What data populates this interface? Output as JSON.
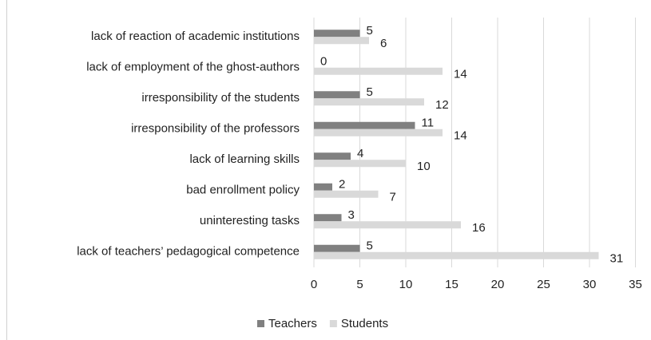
{
  "chart_data": {
    "type": "bar",
    "orientation": "horizontal",
    "categories": [
      "lack of reaction of academic institutions",
      "lack of employment of the ghost-authors",
      "irresponsibility of the students",
      "irresponsibility of the professors",
      "lack of learning skills",
      "bad enrollment policy",
      "uninteresting tasks",
      "lack of teachers’ pedagogical competence"
    ],
    "series": [
      {
        "name": "Teachers",
        "color": "#808080",
        "values": [
          5,
          0,
          5,
          11,
          4,
          2,
          3,
          5
        ]
      },
      {
        "name": "Students",
        "color": "#d9d9d9",
        "values": [
          6,
          14,
          12,
          14,
          10,
          7,
          16,
          31
        ]
      }
    ],
    "xlim": [
      0,
      35
    ],
    "xticks": [
      0,
      5,
      10,
      15,
      20,
      25,
      30,
      35
    ],
    "grid": true,
    "legend": "bottom"
  }
}
